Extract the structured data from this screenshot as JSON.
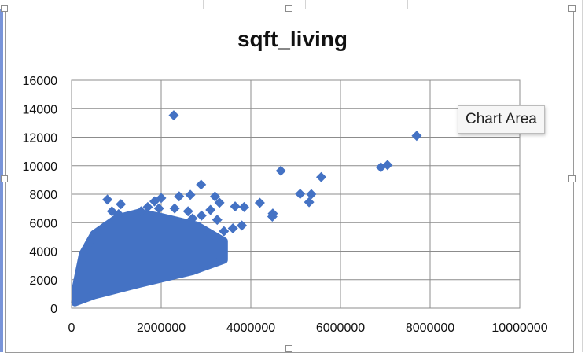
{
  "chart_data": {
    "type": "scatter",
    "title": "sqft_living",
    "xlim": [
      0,
      10000000
    ],
    "ylim": [
      0,
      16000
    ],
    "x_ticks": [
      0,
      2000000,
      4000000,
      6000000,
      8000000,
      10000000
    ],
    "y_ticks": [
      0,
      2000,
      4000,
      6000,
      8000,
      10000,
      12000,
      14000,
      16000
    ],
    "x_tick_labels": [
      "0",
      "2000000",
      "4000000",
      "6000000",
      "8000000",
      "10000000"
    ],
    "y_tick_labels": [
      "0",
      "2000",
      "4000",
      "6000",
      "8000",
      "10000",
      "12000",
      "14000",
      "16000"
    ],
    "grid": true,
    "marker": "diamond",
    "color": "#4472C4",
    "series": [
      {
        "points": [
          [
            7700000,
            12100
          ],
          [
            7050000,
            10050
          ],
          [
            6900000,
            9890
          ],
          [
            5570000,
            9200
          ],
          [
            5350000,
            8000
          ],
          [
            5300000,
            7440
          ],
          [
            5100000,
            8020
          ],
          [
            4670000,
            9640
          ],
          [
            4490000,
            6640
          ],
          [
            4480000,
            6430
          ],
          [
            4200000,
            7390
          ],
          [
            3850000,
            7100
          ],
          [
            3650000,
            7140
          ],
          [
            3800000,
            5800
          ],
          [
            3600000,
            5600
          ],
          [
            3400000,
            5400
          ],
          [
            2280000,
            13540
          ],
          [
            2890000,
            8670
          ],
          [
            2400000,
            7850
          ],
          [
            2650000,
            7950
          ],
          [
            3200000,
            7840
          ],
          [
            3300000,
            7400
          ],
          [
            2000000,
            7730
          ],
          [
            1850000,
            7500
          ],
          [
            1950000,
            7000
          ],
          [
            1700000,
            7100
          ],
          [
            1550000,
            6800
          ],
          [
            800000,
            7620
          ],
          [
            1100000,
            7300
          ],
          [
            1050000,
            6600
          ],
          [
            900000,
            6800
          ],
          [
            3100000,
            6900
          ],
          [
            2900000,
            6500
          ],
          [
            3250000,
            6200
          ],
          [
            2300000,
            7000
          ],
          [
            2600000,
            6800
          ],
          [
            2700000,
            6300
          ]
        ]
      }
    ],
    "dense_cloud": {
      "lower_edge": [
        [
          75000,
          400
        ],
        [
          500000,
          900
        ],
        [
          1500000,
          1700
        ],
        [
          2700000,
          2600
        ],
        [
          3400000,
          3400
        ]
      ],
      "upper_edge": [
        [
          100000,
          1500
        ],
        [
          250000,
          3800
        ],
        [
          500000,
          5200
        ],
        [
          1000000,
          6300
        ],
        [
          1500000,
          6700
        ],
        [
          2000000,
          6400
        ],
        [
          2800000,
          5800
        ],
        [
          3400000,
          4700
        ]
      ]
    }
  },
  "tooltip": {
    "text": "Chart Area"
  },
  "colors": {
    "marker": "#4472C4",
    "grid": "#8c8c8c",
    "plot_border": "#8c8c8c"
  }
}
